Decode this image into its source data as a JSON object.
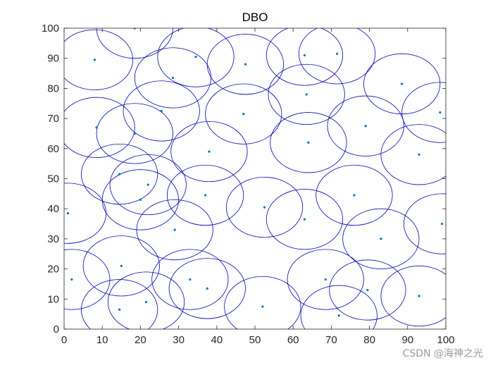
{
  "chart_data": {
    "type": "scatter",
    "title": "DBO",
    "xlabel": "",
    "ylabel": "",
    "xlim": [
      0,
      100
    ],
    "ylim": [
      0,
      100
    ],
    "xticks": [
      0,
      10,
      20,
      30,
      40,
      50,
      60,
      70,
      80,
      90,
      100
    ],
    "yticks": [
      0,
      10,
      20,
      30,
      40,
      50,
      60,
      70,
      80,
      90,
      100
    ],
    "grid": false,
    "box": true,
    "coverage_radius": 10,
    "colors": {
      "circle": "#0000b0",
      "point": "#0072BD",
      "axes": "#262626"
    },
    "points": [
      {
        "x": 18.5,
        "y": 100
      },
      {
        "x": 8,
        "y": 89.5
      },
      {
        "x": 34.5,
        "y": 90.5
      },
      {
        "x": 47.5,
        "y": 88
      },
      {
        "x": 63,
        "y": 91
      },
      {
        "x": 71.5,
        "y": 91.5
      },
      {
        "x": 28.5,
        "y": 83.5
      },
      {
        "x": 63.5,
        "y": 78
      },
      {
        "x": 88.5,
        "y": 81.5
      },
      {
        "x": 25.5,
        "y": 72.5
      },
      {
        "x": 47,
        "y": 71.5
      },
      {
        "x": 98.5,
        "y": 72
      },
      {
        "x": 8.5,
        "y": 67
      },
      {
        "x": 18.5,
        "y": 65
      },
      {
        "x": 79,
        "y": 67.5
      },
      {
        "x": 38,
        "y": 59
      },
      {
        "x": 64,
        "y": 62
      },
      {
        "x": 93,
        "y": 58
      },
      {
        "x": 14.5,
        "y": 51.5
      },
      {
        "x": 22,
        "y": 48
      },
      {
        "x": 76,
        "y": 44.5
      },
      {
        "x": 20,
        "y": 43
      },
      {
        "x": 37,
        "y": 44.5
      },
      {
        "x": 52.5,
        "y": 40.5
      },
      {
        "x": 1,
        "y": 38.5
      },
      {
        "x": 63,
        "y": 36.5
      },
      {
        "x": 99,
        "y": 35
      },
      {
        "x": 29,
        "y": 33
      },
      {
        "x": 83,
        "y": 30
      },
      {
        "x": 15,
        "y": 21
      },
      {
        "x": 2,
        "y": 16.5
      },
      {
        "x": 33,
        "y": 16.5
      },
      {
        "x": 68.5,
        "y": 16.5
      },
      {
        "x": 37.5,
        "y": 13.5
      },
      {
        "x": 79.5,
        "y": 13
      },
      {
        "x": 93,
        "y": 11
      },
      {
        "x": 21.5,
        "y": 9
      },
      {
        "x": 52,
        "y": 7.5
      },
      {
        "x": 14.5,
        "y": 6.5
      },
      {
        "x": 72,
        "y": 4.5
      }
    ]
  },
  "watermark": {
    "text": "CSDN @海神之光"
  }
}
